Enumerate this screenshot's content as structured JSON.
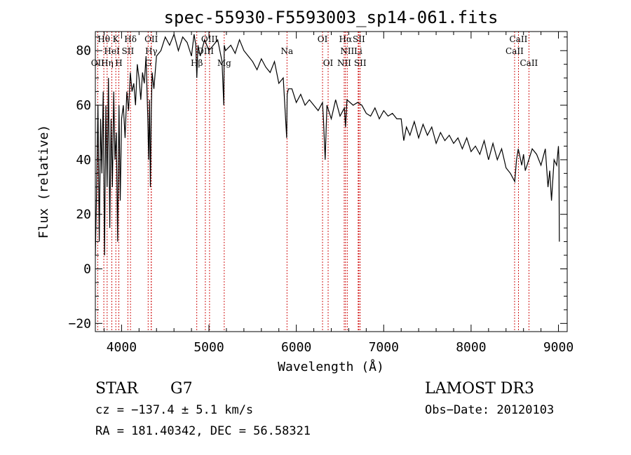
{
  "chart_data": {
    "type": "line",
    "title": "spec-55930-F5593003_sp14-061.fits",
    "xlabel": "Wavelength (Å)",
    "ylabel": "Flux (relative)",
    "xlim": [
      3700,
      9100
    ],
    "ylim": [
      -23,
      87
    ],
    "x_ticks": [
      4000,
      5000,
      6000,
      7000,
      8000,
      9000
    ],
    "y_ticks": [
      -20,
      0,
      20,
      40,
      60,
      80
    ],
    "x_tick_labels": [
      "4000",
      "5000",
      "6000",
      "7000",
      "8000",
      "9000"
    ],
    "y_tick_labels": [
      "−20",
      "0",
      "20",
      "40",
      "60",
      "80"
    ],
    "grid": false,
    "line_color": "#000000",
    "marker_color": "#cc0000",
    "series": [
      {
        "name": "flux",
        "x": [
          3700,
          3715,
          3730,
          3745,
          3760,
          3775,
          3790,
          3805,
          3820,
          3835,
          3850,
          3865,
          3880,
          3895,
          3910,
          3925,
          3940,
          3955,
          3970,
          3985,
          4000,
          4020,
          4040,
          4060,
          4080,
          4100,
          4120,
          4140,
          4160,
          4180,
          4200,
          4220,
          4240,
          4260,
          4280,
          4300,
          4310,
          4320,
          4330,
          4340,
          4350,
          4370,
          4400,
          4450,
          4500,
          4550,
          4600,
          4650,
          4700,
          4750,
          4800,
          4830,
          4850,
          4861,
          4875,
          4900,
          4950,
          5000,
          5050,
          5100,
          5150,
          5170,
          5175,
          5190,
          5250,
          5300,
          5350,
          5400,
          5450,
          5500,
          5550,
          5600,
          5650,
          5700,
          5750,
          5800,
          5850,
          5890,
          5895,
          5910,
          5950,
          6000,
          6050,
          6100,
          6150,
          6200,
          6250,
          6300,
          6310,
          6330,
          6350,
          6400,
          6450,
          6500,
          6550,
          6563,
          6580,
          6650,
          6700,
          6750,
          6800,
          6850,
          6900,
          6950,
          7000,
          7050,
          7100,
          7150,
          7200,
          7230,
          7260,
          7300,
          7350,
          7400,
          7450,
          7500,
          7550,
          7600,
          7650,
          7700,
          7750,
          7800,
          7850,
          7900,
          7950,
          8000,
          8050,
          8100,
          8150,
          8200,
          8250,
          8300,
          8350,
          8400,
          8450,
          8500,
          8520,
          8540,
          8580,
          8600,
          8620,
          8660,
          8700,
          8750,
          8800,
          8850,
          8880,
          8900,
          8920,
          8950,
          8980,
          9000,
          9005,
          9010
        ],
        "values": [
          5,
          30,
          60,
          10,
          55,
          35,
          65,
          5,
          60,
          30,
          70,
          15,
          55,
          30,
          65,
          40,
          50,
          10,
          60,
          25,
          55,
          60,
          48,
          65,
          58,
          72,
          65,
          68,
          60,
          75,
          70,
          62,
          72,
          68,
          78,
          55,
          40,
          62,
          30,
          58,
          72,
          66,
          78,
          80,
          85,
          82,
          86,
          80,
          85,
          83,
          78,
          86,
          82,
          70,
          82,
          78,
          84,
          80,
          82,
          84,
          76,
          60,
          82,
          80,
          82,
          79,
          84,
          80,
          78,
          76,
          73,
          77,
          74,
          72,
          76,
          68,
          70,
          48,
          64,
          66,
          66,
          61,
          64,
          60,
          62,
          60,
          58,
          61,
          55,
          40,
          60,
          55,
          62,
          56,
          59,
          52,
          62,
          60,
          61,
          60,
          57,
          56,
          59,
          55,
          58,
          56,
          57,
          55,
          55,
          47,
          52,
          49,
          54,
          48,
          53,
          49,
          52,
          46,
          50,
          47,
          49,
          46,
          48,
          44,
          48,
          43,
          45,
          42,
          47,
          40,
          46,
          40,
          44,
          37,
          35,
          32,
          40,
          44,
          38,
          42,
          36,
          40,
          44,
          42,
          38,
          44,
          30,
          36,
          25,
          40,
          38,
          45,
          40,
          10
        ]
      }
    ],
    "line_markers": [
      {
        "label": "Hθ",
        "x": 3797,
        "row": 1,
        "anchor": "middle"
      },
      {
        "label": "K",
        "x": 3934,
        "row": 1,
        "anchor": "middle"
      },
      {
        "label": "Hδ",
        "x": 4102,
        "row": 1,
        "anchor": "middle"
      },
      {
        "label": "OII",
        "x": 4340,
        "row": 1,
        "anchor": "middle"
      },
      {
        "label": "OIII",
        "x": 5007,
        "row": 1,
        "anchor": "middle"
      },
      {
        "label": "OI",
        "x": 6300,
        "row": 1,
        "anchor": "middle"
      },
      {
        "label": "Hα",
        "x": 6563,
        "row": 1,
        "anchor": "middle"
      },
      {
        "label": "SII",
        "x": 6716,
        "row": 1,
        "anchor": "middle"
      },
      {
        "label": "CaII",
        "x": 8542,
        "row": 1,
        "anchor": "middle"
      },
      {
        "label": "HeI",
        "x": 3889,
        "row": 2,
        "anchor": "middle"
      },
      {
        "label": "SII",
        "x": 4072,
        "row": 2,
        "anchor": "middle"
      },
      {
        "label": "Hγ",
        "x": 4340,
        "row": 2,
        "anchor": "middle"
      },
      {
        "label": "OIII",
        "x": 4959,
        "row": 2,
        "anchor": "middle"
      },
      {
        "label": "Na",
        "x": 5893,
        "row": 2,
        "anchor": "middle"
      },
      {
        "label": "NII",
        "x": 6583,
        "row": 2,
        "anchor": "middle"
      },
      {
        "label": "Li",
        "x": 6708,
        "row": 2,
        "anchor": "middle"
      },
      {
        "label": "CaII",
        "x": 8498,
        "row": 2,
        "anchor": "middle"
      },
      {
        "label": "OII",
        "x": 3727,
        "row": 3,
        "anchor": "middle"
      },
      {
        "label": "Hη",
        "x": 3835,
        "row": 3,
        "anchor": "middle"
      },
      {
        "label": "H",
        "x": 3969,
        "row": 3,
        "anchor": "middle"
      },
      {
        "label": "G",
        "x": 4304,
        "row": 3,
        "anchor": "middle"
      },
      {
        "label": "Hβ",
        "x": 4861,
        "row": 3,
        "anchor": "middle"
      },
      {
        "label": "Mg",
        "x": 5175,
        "row": 3,
        "anchor": "middle"
      },
      {
        "label": "OI",
        "x": 6364,
        "row": 3,
        "anchor": "middle"
      },
      {
        "label": "NII",
        "x": 6548,
        "row": 3,
        "anchor": "middle"
      },
      {
        "label": "SII",
        "x": 6731,
        "row": 3,
        "anchor": "middle"
      },
      {
        "label": "CaII",
        "x": 8662,
        "row": 3,
        "anchor": "middle"
      }
    ]
  },
  "info": {
    "object_class": "STAR",
    "subclass": "G7",
    "survey": "LAMOST DR3",
    "cz": "cz = −137.4 ± 5.1 km/s",
    "obs_date": "Obs−Date: 20120103",
    "coords": "RA = 181.40342, DEC =  56.58321"
  }
}
